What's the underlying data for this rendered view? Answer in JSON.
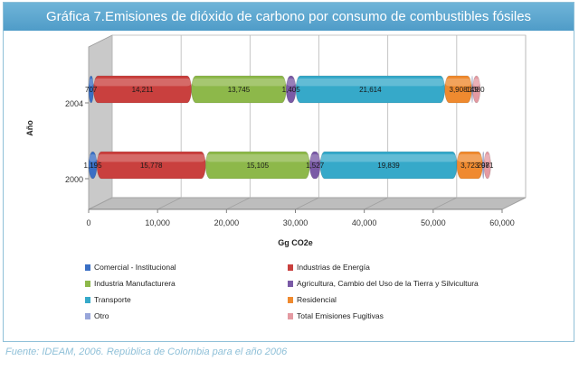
{
  "source": "Fuente: IDEAM, 2006. República de Colombia para el año 2006",
  "chart_data": {
    "type": "bar",
    "orientation": "horizontal",
    "stacked": true,
    "title": "Gráfica 7.Emisiones de dióxido de carbono por consumo de combustibles fósiles",
    "xlabel": "Gg CO2e",
    "ylabel": "Año",
    "xlim": [
      0,
      60000
    ],
    "xticks": [
      "0",
      "10,000",
      "20,000",
      "30,000",
      "40,000",
      "50,000",
      "60,000"
    ],
    "grid": true,
    "legend_position": "bottom",
    "categories": [
      "2004",
      "2000"
    ],
    "series": [
      {
        "name": "Comercial - Institucional",
        "color": "#3a6fc4",
        "values": [
          707,
          1195
        ],
        "labels": [
          "707",
          "1,195"
        ]
      },
      {
        "name": "Industrias de Energía",
        "color": "#c9403e",
        "values": [
          14211,
          15778
        ],
        "labels": [
          "14,211",
          "15,778"
        ]
      },
      {
        "name": "Industria Manufacturera",
        "color": "#8db84a",
        "values": [
          13745,
          15105
        ],
        "labels": [
          "13,745",
          "15,105"
        ]
      },
      {
        "name": "Agricultura, Cambio  del Uso de la Tierra y Silvicultura",
        "color": "#7a5aa6",
        "values": [
          1405,
          1527
        ],
        "labels": [
          "1,405",
          "1,527"
        ]
      },
      {
        "name": "Transporte",
        "color": "#36a9c9",
        "values": [
          21614,
          19839
        ],
        "labels": [
          "21,614",
          "19,839"
        ]
      },
      {
        "name": "Residencial",
        "color": "#ef8a2f",
        "values": [
          3908,
          3723
        ],
        "labels": [
          "3,908",
          "3,723"
        ]
      },
      {
        "name": "Otro",
        "color": "#98a6da",
        "values": [
          149,
          207
        ],
        "labels": [
          "149",
          "207"
        ]
      },
      {
        "name": "Total Emisiones  Fugitivas",
        "color": "#e49aa2",
        "values": [
          1080,
          981
        ],
        "labels": [
          "1080",
          "981"
        ]
      }
    ]
  }
}
